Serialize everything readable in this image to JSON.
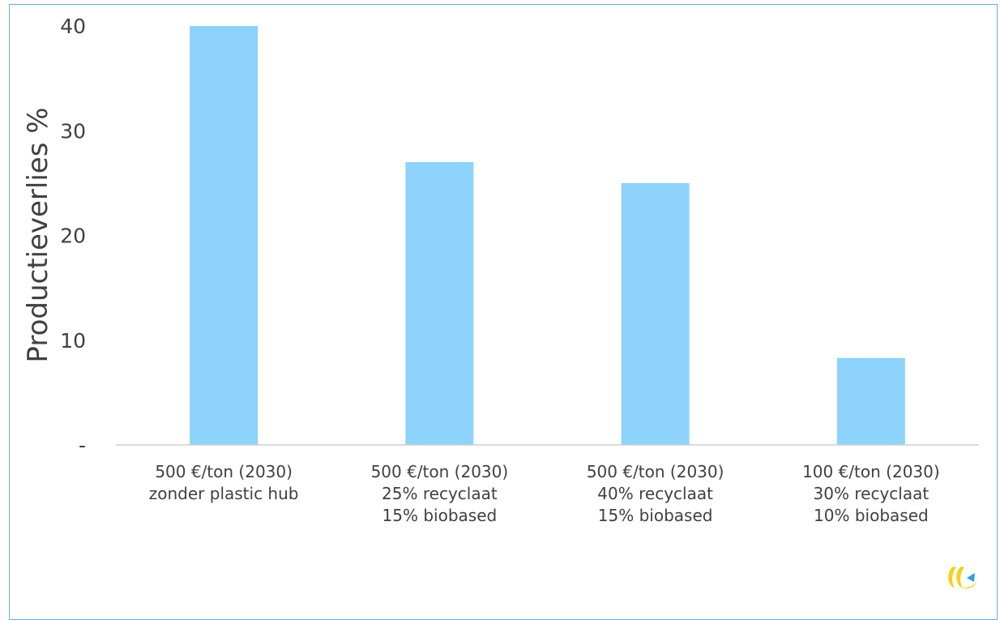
{
  "chart_data": {
    "type": "bar",
    "ylabel": "Productieverlies %",
    "xlabel": "",
    "title": "",
    "ylim": [
      0,
      40
    ],
    "ytick_labels": [
      "-",
      "10",
      "20",
      "30",
      "40"
    ],
    "ytick_values": [
      0,
      10,
      20,
      30,
      40
    ],
    "categories": [
      [
        "500 €/ton (2030)",
        "zonder plastic hub"
      ],
      [
        "500 €/ton (2030)",
        "25% recyclaat",
        "15% biobased"
      ],
      [
        "500 €/ton (2030)",
        "40% recyclaat",
        "15% biobased"
      ],
      [
        "100 €/ton (2030)",
        "30% recyclaat",
        "10% biobased"
      ]
    ],
    "values": [
      40,
      27,
      25,
      8.3
    ],
    "bar_color": "#8dd3fc",
    "grid": false,
    "legend": "none"
  },
  "logo": {
    "icon": "company-logo-icon",
    "colors": [
      "#f2d21c",
      "#2aa2dc"
    ]
  }
}
